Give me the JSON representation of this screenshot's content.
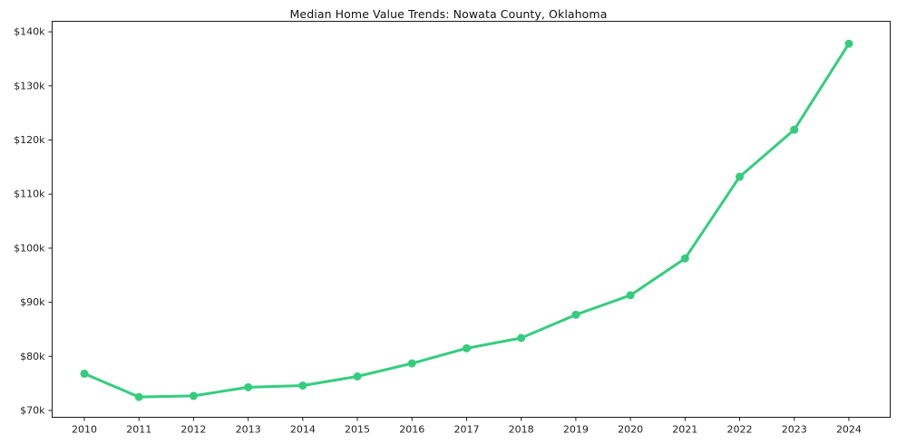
{
  "figure": {
    "background_color": "#ffffff",
    "border_color": "#1a1a1a",
    "text_color": "#222222"
  },
  "chart_data": {
    "type": "line",
    "title": "Median Home Value Trends: Nowata County, Oklahoma",
    "xlabel": "",
    "ylabel": "",
    "x": [
      2010,
      2011,
      2012,
      2013,
      2014,
      2015,
      2016,
      2017,
      2018,
      2019,
      2020,
      2021,
      2022,
      2023,
      2024
    ],
    "series": [
      {
        "name": "Median Home Value",
        "values": [
          76800,
          72500,
          72700,
          74300,
          74600,
          76300,
          78700,
          81500,
          83400,
          87700,
          91300,
          98100,
          113200,
          121900,
          137800
        ]
      }
    ],
    "ylim": [
      68800,
      141800
    ],
    "y_ticks": [
      70000,
      80000,
      90000,
      100000,
      110000,
      120000,
      130000,
      140000
    ],
    "y_tick_labels": [
      "$70k",
      "$80k",
      "$90k",
      "$100k",
      "$110k",
      "$120k",
      "$130k",
      "$140k"
    ],
    "line_color": "#34cd7e",
    "marker": "circle",
    "grid": false,
    "legend": false
  }
}
